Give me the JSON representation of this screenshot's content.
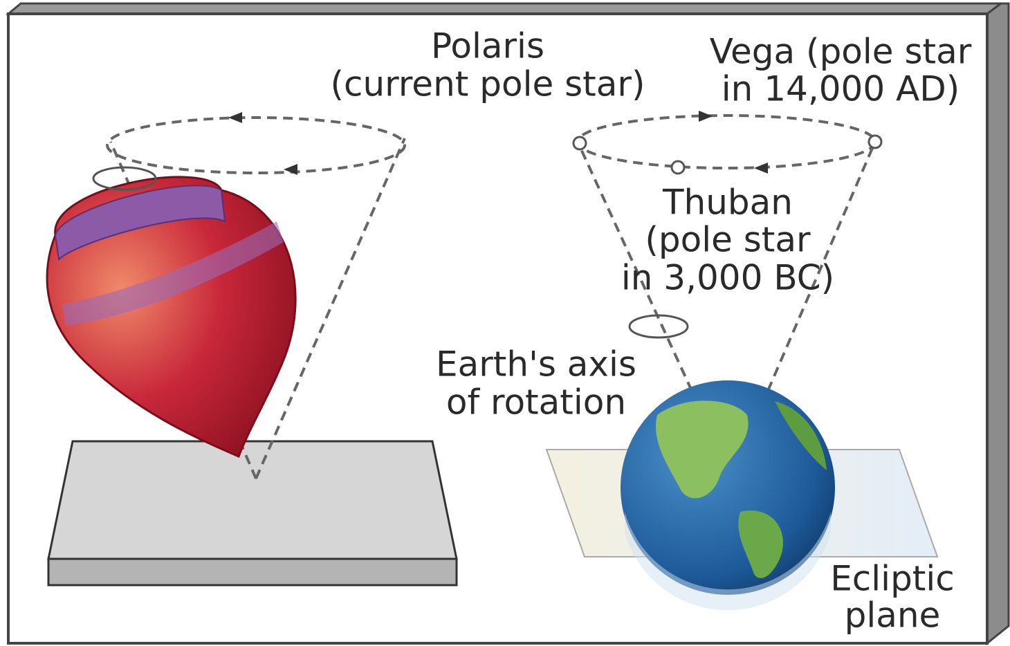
{
  "labels": {
    "polaris": [
      "Polaris",
      "(current pole star)"
    ],
    "vega": [
      "Vega (pole star",
      "in 14,000 AD)"
    ],
    "thuban": [
      "Thuban",
      "(pole star",
      "in 3,000 BC)"
    ],
    "axis": [
      "Earth's axis",
      "of rotation"
    ],
    "ecliptic": [
      "Ecliptic",
      "plane"
    ]
  }
}
